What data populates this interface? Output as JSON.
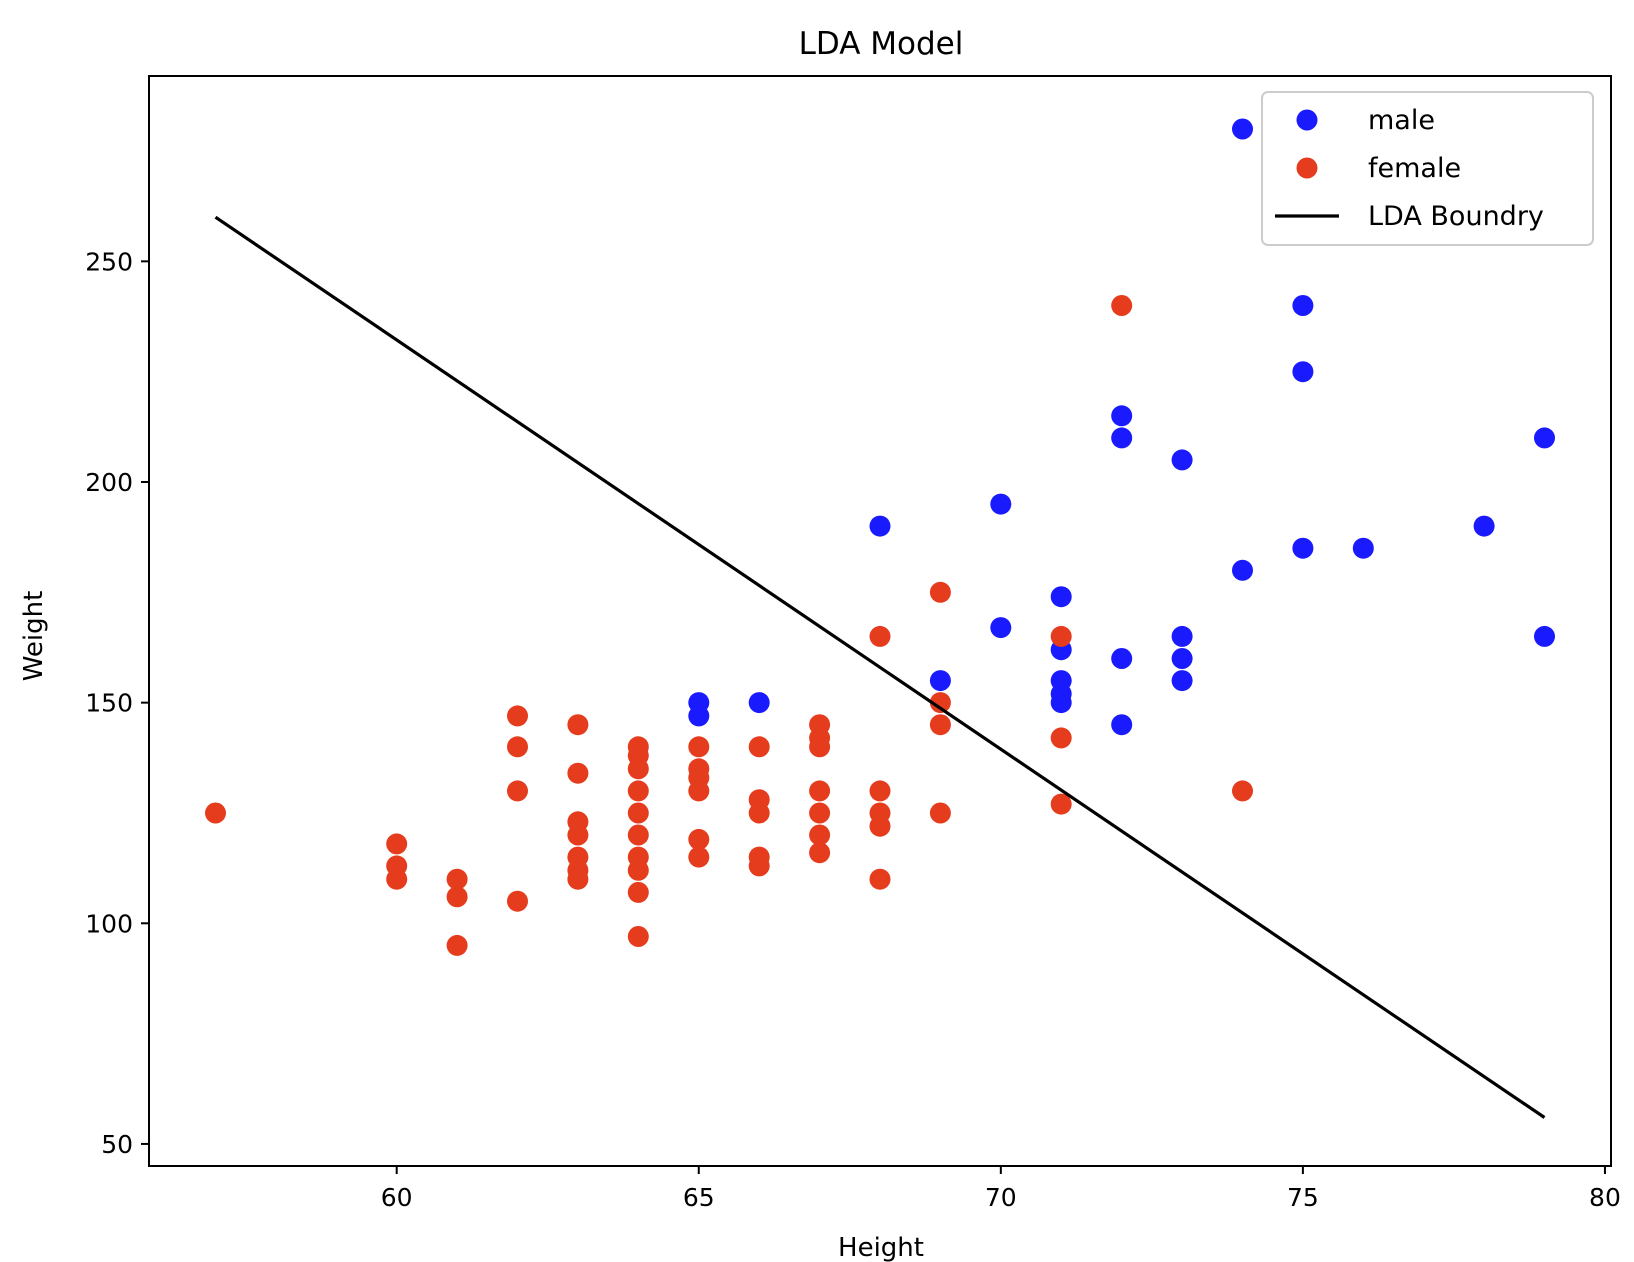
{
  "chart_data": {
    "type": "scatter",
    "title": "LDA Model",
    "xlabel": "Height",
    "ylabel": "Weight",
    "xlim": [
      55.9,
      80.1
    ],
    "ylim": [
      45,
      292
    ],
    "xticks": [
      60,
      65,
      70,
      75,
      80
    ],
    "yticks": [
      50,
      100,
      150,
      200,
      250
    ],
    "grid": false,
    "legend_position": "top-right",
    "series": [
      {
        "name": "male",
        "kind": "scatter",
        "color": "#1a1aff",
        "points": [
          [
            74,
            280
          ],
          [
            75,
            240
          ],
          [
            75,
            225
          ],
          [
            72,
            215
          ],
          [
            72,
            210
          ],
          [
            73,
            205
          ],
          [
            79,
            210
          ],
          [
            70,
            195
          ],
          [
            68,
            190
          ],
          [
            78,
            190
          ],
          [
            75,
            185
          ],
          [
            76,
            185
          ],
          [
            74,
            180
          ],
          [
            71,
            174
          ],
          [
            70,
            167
          ],
          [
            71,
            162
          ],
          [
            73,
            165
          ],
          [
            79,
            165
          ],
          [
            72,
            160
          ],
          [
            73,
            160
          ],
          [
            69,
            155
          ],
          [
            71,
            155
          ],
          [
            73,
            155
          ],
          [
            71,
            152
          ],
          [
            71,
            150
          ],
          [
            65,
            150
          ],
          [
            66,
            150
          ],
          [
            65,
            147
          ],
          [
            72,
            145
          ]
        ]
      },
      {
        "name": "female",
        "kind": "scatter",
        "color": "#e63c1e",
        "points": [
          [
            72,
            240
          ],
          [
            69,
            175
          ],
          [
            68,
            165
          ],
          [
            71,
            165
          ],
          [
            69,
            150
          ],
          [
            69,
            145
          ],
          [
            71,
            142
          ],
          [
            74,
            130
          ],
          [
            71,
            127
          ],
          [
            69,
            125
          ],
          [
            57,
            125
          ],
          [
            60,
            118
          ],
          [
            60,
            113
          ],
          [
            60,
            110
          ],
          [
            61,
            110
          ],
          [
            61,
            106
          ],
          [
            61,
            95
          ],
          [
            62,
            147
          ],
          [
            62,
            140
          ],
          [
            62,
            130
          ],
          [
            62,
            105
          ],
          [
            63,
            145
          ],
          [
            63,
            134
          ],
          [
            63,
            123
          ],
          [
            63,
            120
          ],
          [
            63,
            115
          ],
          [
            63,
            112
          ],
          [
            63,
            110
          ],
          [
            64,
            140
          ],
          [
            64,
            138
          ],
          [
            64,
            135
          ],
          [
            64,
            130
          ],
          [
            64,
            125
          ],
          [
            64,
            120
          ],
          [
            64,
            115
          ],
          [
            64,
            112
          ],
          [
            64,
            107
          ],
          [
            64,
            97
          ],
          [
            65,
            140
          ],
          [
            65,
            135
          ],
          [
            65,
            133
          ],
          [
            65,
            130
          ],
          [
            65,
            119
          ],
          [
            65,
            115
          ],
          [
            66,
            140
          ],
          [
            66,
            128
          ],
          [
            66,
            125
          ],
          [
            66,
            115
          ],
          [
            66,
            113
          ],
          [
            67,
            145
          ],
          [
            67,
            142
          ],
          [
            67,
            140
          ],
          [
            67,
            130
          ],
          [
            67,
            125
          ],
          [
            67,
            120
          ],
          [
            67,
            116
          ],
          [
            68,
            130
          ],
          [
            68,
            125
          ],
          [
            68,
            122
          ],
          [
            68,
            110
          ]
        ]
      },
      {
        "name": "LDA Boundry",
        "kind": "line",
        "color": "#000000",
        "points": [
          [
            57,
            260
          ],
          [
            79,
            56
          ]
        ]
      }
    ]
  }
}
